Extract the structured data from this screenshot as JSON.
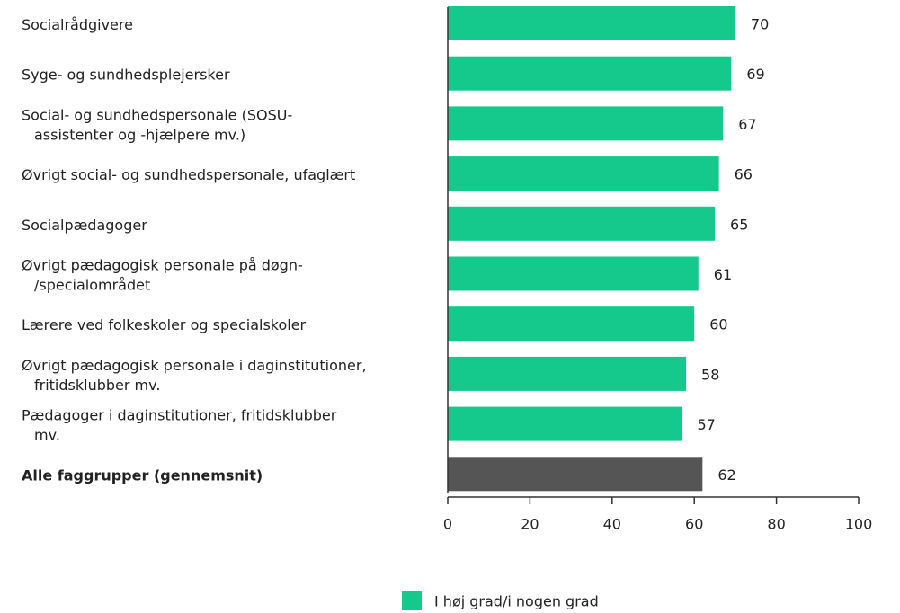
{
  "chart_data": {
    "type": "barh",
    "categories": [
      [
        "Socialrådgivere"
      ],
      [
        "Syge- og  sundhedsplejersker"
      ],
      [
        "Social- og sundhedspersonale (SOSU-",
        "assistenter og -hjælpere mv.)"
      ],
      [
        "Øvrigt social- og sundhedspersonale, ufaglært"
      ],
      [
        "Socialpædagoger"
      ],
      [
        "Øvrigt pædagogisk personale på døgn-",
        "/specialområdet"
      ],
      [
        "Lærere ved folkeskoler og specialskoler"
      ],
      [
        "Øvrigt pædagogisk personale i daginstitutioner,",
        "fritidsklubber mv."
      ],
      [
        "Pædagoger i daginstitutioner, fritidsklubber",
        "mv."
      ],
      [
        "Alle faggrupper (gennemsnit)"
      ]
    ],
    "series": [
      {
        "name": "I høj grad/i nogen grad",
        "color": "#14c98b",
        "values": [
          70,
          69,
          67,
          66,
          65,
          61,
          60,
          58,
          57,
          62
        ]
      }
    ],
    "colors": [
      "#14c98b",
      "#14c98b",
      "#14c98b",
      "#14c98b",
      "#14c98b",
      "#14c98b",
      "#14c98b",
      "#14c98b",
      "#14c98b",
      "#555555"
    ],
    "xlim": [
      0,
      100
    ],
    "xticks": [
      0,
      20,
      40,
      60,
      80,
      100
    ]
  }
}
